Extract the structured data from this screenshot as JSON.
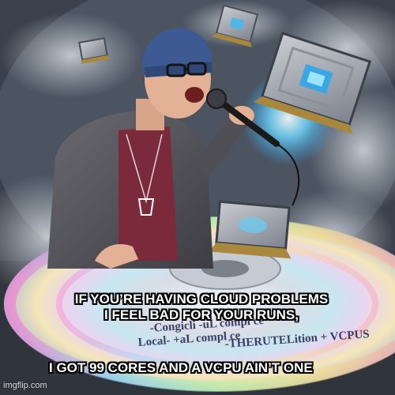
{
  "meme": {
    "caption_lines": [
      "IF YOU’RE HAVING CLOUD PROBLEMS",
      "I FEEL BAD FOR YOUR RUNS,",
      "I GOT 99 CORES AND A VCPU AIN’T ONE"
    ],
    "disc_text_lines": [
      "-Congicli -uL compl ce",
      "Local- +aL compl ce",
      "-THERUTELition + VCPUS"
    ],
    "watermark": "imgflip.com"
  },
  "palette": {
    "background": "#3a414c",
    "beanie": "#3e5a94",
    "jacket": "#5b5b5f",
    "shirt": "#7a2a3a",
    "chip_glow": "#46c8ff",
    "caption_fill": "#ffffff",
    "caption_outline": "#000000"
  },
  "icons": [
    "microphone-icon",
    "cpu-chip-icon",
    "pendant-icon"
  ]
}
